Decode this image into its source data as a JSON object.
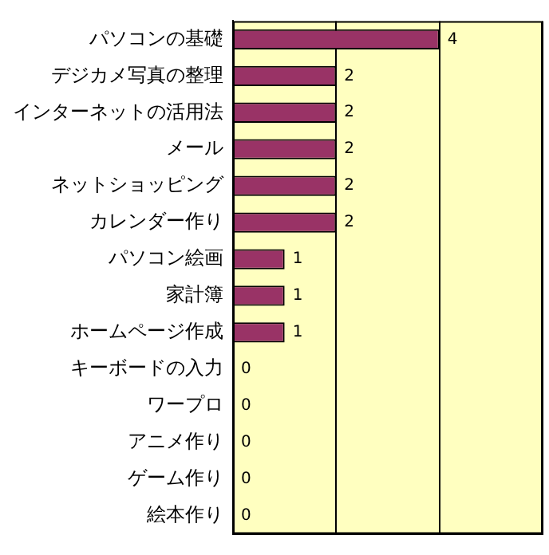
{
  "chart_data": {
    "type": "bar",
    "orientation": "horizontal",
    "categories": [
      "パソコンの基礎",
      "デジカメ写真の整理",
      "インターネットの活用法",
      "メール",
      "ネットショッピング",
      "カレンダー作り",
      "パソコン絵画",
      "家計簿",
      "ホームページ作成",
      "キーボードの入力",
      "ワープロ",
      "アニメ作り",
      "ゲーム作り",
      "絵本作り"
    ],
    "values": [
      4,
      2,
      2,
      2,
      2,
      2,
      1,
      1,
      1,
      0,
      0,
      0,
      0,
      0
    ],
    "color": "#993366",
    "xlim": [
      0,
      6
    ],
    "xticks": [
      {
        "value": 0,
        "label": null
      },
      {
        "value": 2,
        "label": null
      },
      {
        "value": 4,
        "label": null
      },
      {
        "value": 6,
        "label": null
      }
    ],
    "grid": "x",
    "tick_labels": "y",
    "data_labels": true
  }
}
